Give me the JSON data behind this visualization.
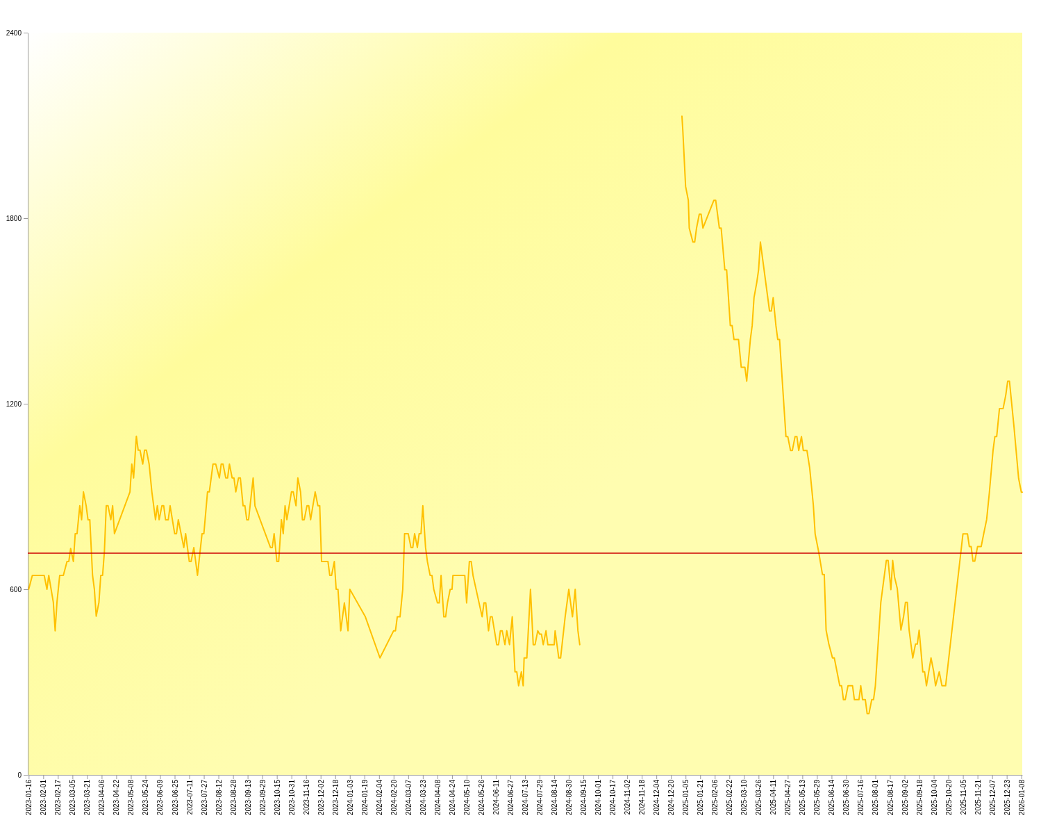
{
  "chart_data": {
    "type": "line",
    "x": [
      "2023-01-16",
      "2023-01-20",
      "2023-02-02",
      "2023-02-05",
      "2023-02-07",
      "2023-02-12",
      "2023-02-14",
      "2023-02-16",
      "2023-02-19",
      "2023-02-23",
      "2023-02-27",
      "2023-03-01",
      "2023-03-03",
      "2023-03-06",
      "2023-03-08",
      "2023-03-10",
      "2023-03-13",
      "2023-03-15",
      "2023-03-17",
      "2023-03-20",
      "2023-03-22",
      "2023-03-24",
      "2023-03-27",
      "2023-03-29",
      "2023-03-31",
      "2023-04-03",
      "2023-04-05",
      "2023-04-07",
      "2023-04-09",
      "2023-04-11",
      "2023-04-13",
      "2023-04-16",
      "2023-04-18",
      "2023-04-20",
      "2023-05-07",
      "2023-05-09",
      "2023-05-11",
      "2023-05-14",
      "2023-05-16",
      "2023-05-18",
      "2023-05-21",
      "2023-05-23",
      "2023-05-25",
      "2023-05-28",
      "2023-05-31",
      "2023-06-04",
      "2023-06-06",
      "2023-06-08",
      "2023-06-11",
      "2023-06-13",
      "2023-06-15",
      "2023-06-18",
      "2023-06-20",
      "2023-06-25",
      "2023-06-27",
      "2023-06-29",
      "2023-07-05",
      "2023-07-07",
      "2023-07-09",
      "2023-07-11",
      "2023-07-13",
      "2023-07-16",
      "2023-07-20",
      "2023-07-25",
      "2023-07-27",
      "2023-07-31",
      "2023-08-02",
      "2023-08-06",
      "2023-08-09",
      "2023-08-13",
      "2023-08-15",
      "2023-08-17",
      "2023-08-20",
      "2023-08-22",
      "2023-08-24",
      "2023-08-27",
      "2023-08-29",
      "2023-08-31",
      "2023-09-03",
      "2023-09-05",
      "2023-09-08",
      "2023-09-10",
      "2023-09-12",
      "2023-09-14",
      "2023-09-19",
      "2023-09-21",
      "2023-10-08",
      "2023-10-10",
      "2023-10-12",
      "2023-10-15",
      "2023-10-17",
      "2023-10-20",
      "2023-10-22",
      "2023-10-24",
      "2023-10-26",
      "2023-10-31",
      "2023-11-02",
      "2023-11-05",
      "2023-11-07",
      "2023-11-10",
      "2023-11-12",
      "2023-11-14",
      "2023-11-17",
      "2023-11-19",
      "2023-11-21",
      "2023-11-26",
      "2023-11-29",
      "2023-12-01",
      "2023-12-03",
      "2023-12-10",
      "2023-12-12",
      "2023-12-14",
      "2023-12-17",
      "2023-12-19",
      "2023-12-21",
      "2023-12-24",
      "2023-12-28",
      "2024-01-01",
      "2024-01-03",
      "2024-01-20",
      "2024-02-05",
      "2024-02-20",
      "2024-02-22",
      "2024-02-24",
      "2024-02-27",
      "2024-03-01",
      "2024-03-03",
      "2024-03-07",
      "2024-03-10",
      "2024-03-12",
      "2024-03-14",
      "2024-03-17",
      "2024-03-19",
      "2024-03-21",
      "2024-03-23",
      "2024-03-26",
      "2024-03-28",
      "2024-03-31",
      "2024-04-02",
      "2024-04-04",
      "2024-04-08",
      "2024-04-10",
      "2024-04-12",
      "2024-04-15",
      "2024-04-17",
      "2024-04-19",
      "2024-04-22",
      "2024-04-24",
      "2024-04-25",
      "2024-05-08",
      "2024-05-10",
      "2024-05-13",
      "2024-05-15",
      "2024-05-17",
      "2024-05-27",
      "2024-05-29",
      "2024-05-31",
      "2024-06-03",
      "2024-06-05",
      "2024-06-07",
      "2024-06-12",
      "2024-06-14",
      "2024-06-16",
      "2024-06-18",
      "2024-06-21",
      "2024-06-23",
      "2024-06-26",
      "2024-06-29",
      "2024-07-02",
      "2024-07-04",
      "2024-07-06",
      "2024-07-09",
      "2024-07-11",
      "2024-07-12",
      "2024-07-15",
      "2024-07-19",
      "2024-07-22",
      "2024-07-24",
      "2024-07-27",
      "2024-07-29",
      "2024-07-31",
      "2024-08-02",
      "2024-08-05",
      "2024-08-07",
      "2024-08-14",
      "2024-08-15",
      "2024-08-19",
      "2024-08-21",
      "2024-08-26",
      "2024-08-30",
      "2024-09-03",
      "2024-09-06",
      "2024-09-09",
      "2024-09-11",
      "2024-11-01",
      "2025-01-01",
      "2025-01-02",
      "2025-01-05",
      "2025-01-08",
      "2025-01-09",
      "2025-01-13",
      "2025-01-15",
      "2025-01-17",
      "2025-01-20",
      "2025-01-22",
      "2025-01-24",
      "2025-02-05",
      "2025-02-07",
      "2025-02-09",
      "2025-02-11",
      "2025-02-13",
      "2025-02-17",
      "2025-02-19",
      "2025-02-23",
      "2025-02-25",
      "2025-02-27",
      "2025-03-04",
      "2025-03-07",
      "2025-03-11",
      "2025-03-13",
      "2025-03-17",
      "2025-03-19",
      "2025-03-21",
      "2025-03-24",
      "2025-03-26",
      "2025-03-28",
      "2025-04-07",
      "2025-04-09",
      "2025-04-11",
      "2025-04-14",
      "2025-04-16",
      "2025-04-18",
      "2025-04-25",
      "2025-04-27",
      "2025-04-30",
      "2025-05-02",
      "2025-05-05",
      "2025-05-07",
      "2025-05-09",
      "2025-05-12",
      "2025-05-14",
      "2025-05-18",
      "2025-05-21",
      "2025-05-25",
      "2025-05-27",
      "2025-05-31",
      "2025-06-04",
      "2025-06-06",
      "2025-06-08",
      "2025-06-11",
      "2025-06-15",
      "2025-06-17",
      "2025-06-20",
      "2025-06-23",
      "2025-06-25",
      "2025-06-27",
      "2025-06-29",
      "2025-07-02",
      "2025-07-07",
      "2025-07-09",
      "2025-07-14",
      "2025-07-16",
      "2025-07-18",
      "2025-07-21",
      "2025-07-23",
      "2025-07-25",
      "2025-07-28",
      "2025-07-30",
      "2025-08-01",
      "2025-08-06",
      "2025-08-07",
      "2025-08-13",
      "2025-08-15",
      "2025-08-18",
      "2025-08-20",
      "2025-08-22",
      "2025-08-25",
      "2025-08-29",
      "2025-09-01",
      "2025-09-03",
      "2025-09-05",
      "2025-09-07",
      "2025-09-11",
      "2025-09-14",
      "2025-09-16",
      "2025-09-18",
      "2025-09-22",
      "2025-09-24",
      "2025-09-26",
      "2025-10-01",
      "2025-10-04",
      "2025-10-06",
      "2025-10-10",
      "2025-10-13",
      "2025-10-17",
      "2025-11-05",
      "2025-11-10",
      "2025-11-12",
      "2025-11-14",
      "2025-11-16",
      "2025-11-18",
      "2025-11-21",
      "2025-11-25",
      "2025-11-28",
      "2025-12-01",
      "2025-12-04",
      "2025-12-08",
      "2025-12-10",
      "2025-12-12",
      "2025-12-15",
      "2025-12-19",
      "2025-12-22",
      "2025-12-24",
      "2025-12-26",
      "2025-12-31",
      "2026-01-05",
      "2026-01-08",
      "2026-01-09"
    ],
    "series": [
      {
        "color": "#ffc000",
        "values": [
          600,
          645,
          645,
          600,
          645,
          558,
          466,
          558,
          645,
          645,
          690,
          690,
          732,
          690,
          780,
          780,
          870,
          825,
          915,
          870,
          825,
          825,
          645,
          600,
          513,
          558,
          645,
          645,
          723,
          870,
          870,
          825,
          870,
          780,
          915,
          1005,
          960,
          1095,
          1050,
          1050,
          1005,
          1050,
          1050,
          1005,
          915,
          825,
          870,
          825,
          870,
          870,
          825,
          825,
          870,
          780,
          780,
          825,
          735,
          780,
          735,
          690,
          690,
          735,
          645,
          780,
          780,
          915,
          915,
          1005,
          1005,
          960,
          1005,
          1005,
          960,
          960,
          1005,
          960,
          960,
          915,
          960,
          960,
          870,
          870,
          825,
          825,
          960,
          870,
          735,
          735,
          780,
          690,
          690,
          825,
          780,
          870,
          825,
          915,
          915,
          870,
          960,
          915,
          825,
          825,
          870,
          870,
          825,
          915,
          870,
          870,
          690,
          690,
          645,
          645,
          690,
          600,
          600,
          466,
          556,
          466,
          600,
          511,
          378,
          466,
          466,
          511,
          511,
          600,
          780,
          780,
          735,
          735,
          780,
          735,
          780,
          780,
          870,
          735,
          690,
          645,
          645,
          600,
          556,
          556,
          645,
          511,
          511,
          556,
          600,
          600,
          645,
          645,
          556,
          690,
          690,
          645,
          511,
          556,
          556,
          466,
          511,
          511,
          421,
          421,
          466,
          466,
          421,
          466,
          421,
          511,
          333,
          333,
          288,
          333,
          288,
          378,
          378,
          600,
          421,
          421,
          466,
          455,
          455,
          421,
          466,
          421,
          421,
          466,
          378,
          378,
          511,
          600,
          511,
          600,
          466,
          421,
          null,
          2130,
          2082,
          1903,
          1858,
          1768,
          1723,
          1723,
          1768,
          1813,
          1813,
          1768,
          1858,
          1858,
          1813,
          1768,
          1768,
          1633,
          1633,
          1453,
          1453,
          1408,
          1408,
          1318,
          1318,
          1273,
          1408,
          1453,
          1543,
          1592,
          1633,
          1723,
          1500,
          1500,
          1543,
          1453,
          1408,
          1408,
          1094,
          1094,
          1049,
          1049,
          1094,
          1094,
          1049,
          1094,
          1049,
          1049,
          993,
          873,
          779,
          719,
          648,
          648,
          468,
          423,
          378,
          378,
          333,
          288,
          288,
          243,
          243,
          288,
          288,
          243,
          243,
          288,
          243,
          243,
          198,
          198,
          243,
          243,
          288,
          513,
          558,
          693,
          693,
          599,
          693,
          640,
          603,
          468,
          513,
          558,
          558,
          468,
          378,
          423,
          423,
          468,
          333,
          333,
          288,
          378,
          333,
          288,
          333,
          288,
          288,
          779,
          779,
          738,
          738,
          691,
          691,
          738,
          738,
          783,
          826,
          914,
          1049,
          1094,
          1094,
          1184,
          1184,
          1229,
          1273,
          1273,
          1124,
          959,
          914,
          914
        ]
      }
    ],
    "xlim": [
      "2023-01-15",
      "2026-01-09"
    ],
    "xticks": [
      "2023-01-16",
      "2023-02-01",
      "2023-02-17",
      "2023-03-05",
      "2023-03-21",
      "2023-04-06",
      "2023-04-22",
      "2023-05-08",
      "2023-05-24",
      "2023-06-09",
      "2023-06-25",
      "2023-07-11",
      "2023-07-27",
      "2023-08-12",
      "2023-08-28",
      "2023-09-13",
      "2023-09-29",
      "2023-10-15",
      "2023-10-31",
      "2023-11-16",
      "2023-12-02",
      "2023-12-18",
      "2024-01-03",
      "2024-01-19",
      "2024-02-04",
      "2024-02-20",
      "2024-03-07",
      "2024-03-23",
      "2024-04-08",
      "2024-04-24",
      "2024-05-10",
      "2024-05-26",
      "2024-06-11",
      "2024-06-27",
      "2024-07-13",
      "2024-07-29",
      "2024-08-14",
      "2024-08-30",
      "2024-09-15",
      "2024-10-01",
      "2024-10-17",
      "2024-11-02",
      "2024-11-18",
      "2024-12-04",
      "2024-12-20",
      "2025-01-05",
      "2025-01-21",
      "2025-02-06",
      "2025-02-22",
      "2025-03-10",
      "2025-03-26",
      "2025-04-11",
      "2025-04-27",
      "2025-05-13",
      "2025-05-29",
      "2025-06-14",
      "2025-06-30",
      "2025-07-16",
      "2025-08-01",
      "2025-08-17",
      "2025-09-02",
      "2025-09-18",
      "2025-10-04",
      "2025-10-20",
      "2025-11-05",
      "2025-11-21",
      "2025-12-07",
      "2025-12-23",
      "2026-01-08"
    ],
    "ylim": [
      0,
      2400
    ],
    "yticks": [
      0,
      600,
      1200,
      1800,
      2400
    ],
    "ref_lines": [
      {
        "axis": "y",
        "value": 717,
        "color": "#cc0000"
      }
    ]
  }
}
